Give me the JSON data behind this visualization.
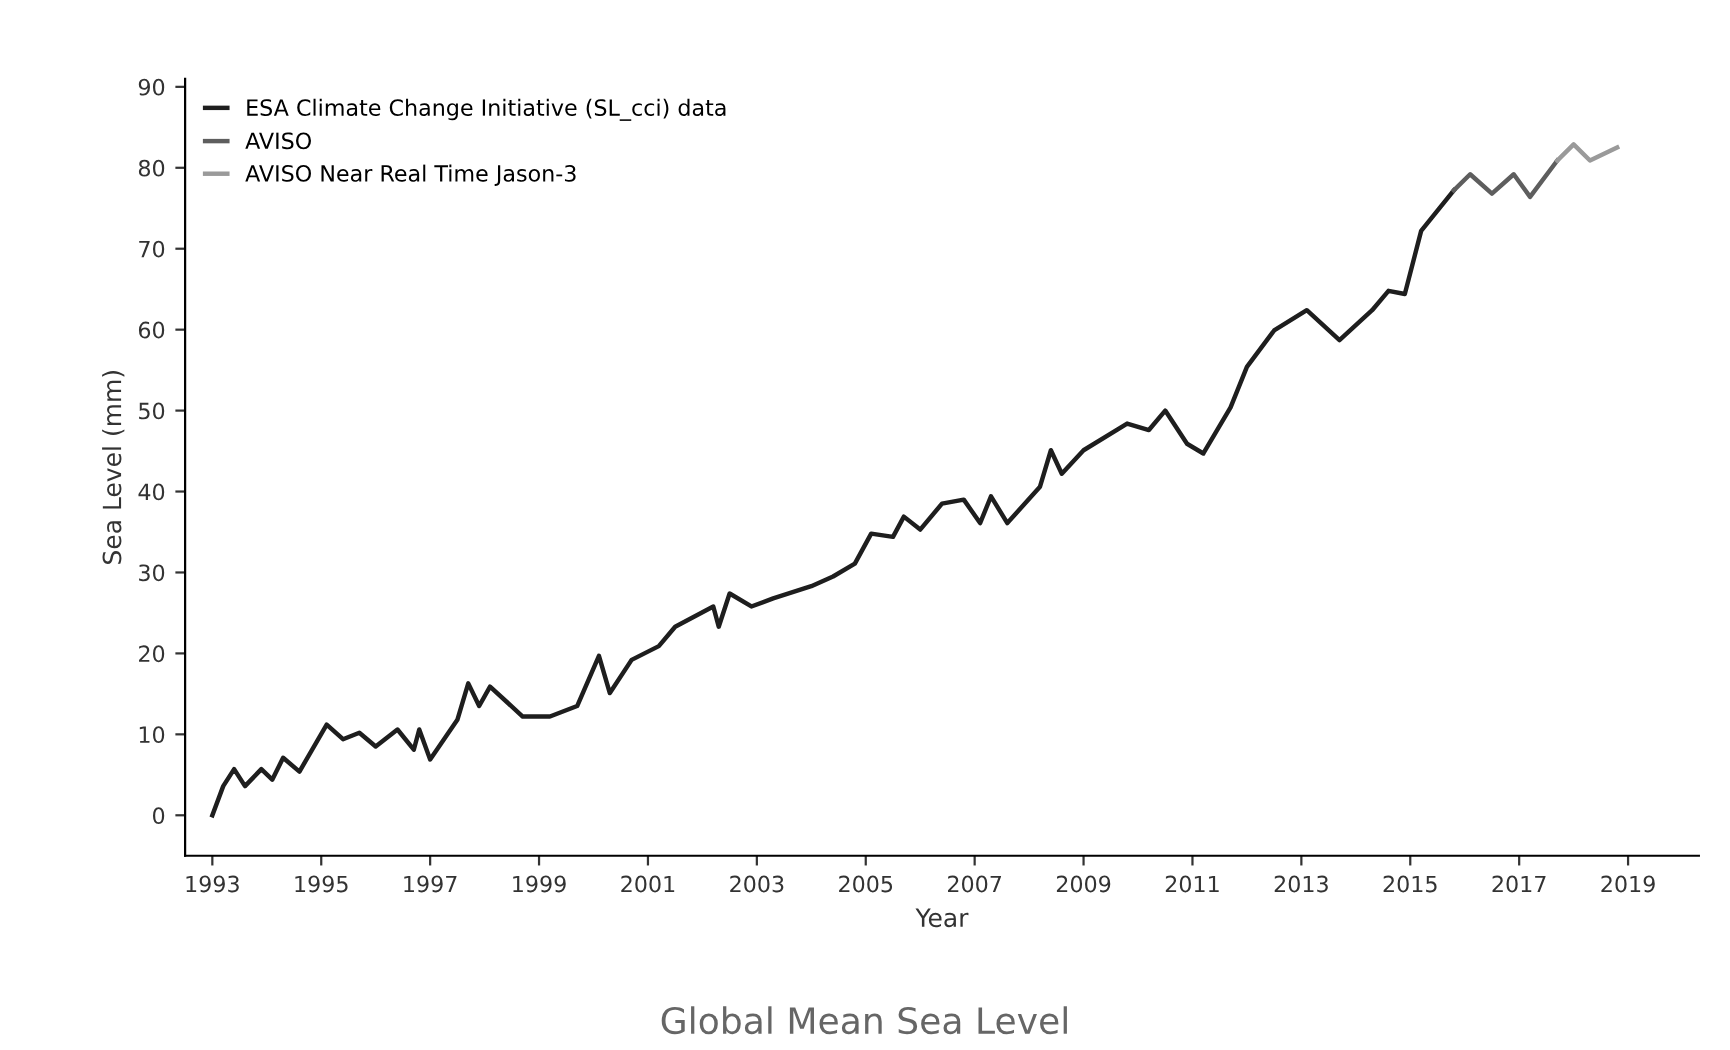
{
  "chart_data": {
    "type": "line",
    "xlabel": "Year",
    "ylabel": "Sea Level (mm)",
    "annotations": [
      "Global Mean Sea Level"
    ],
    "xlim": [
      1992.5,
      2020.3
    ],
    "xticks": [
      1993,
      1995,
      1997,
      1999,
      2001,
      2003,
      2005,
      2007,
      2009,
      2011,
      2013,
      2015,
      2017,
      2019
    ],
    "ylim": [
      -5,
      91
    ],
    "yticks": [
      0,
      10,
      20,
      30,
      40,
      50,
      60,
      70,
      80,
      90
    ],
    "grid": false,
    "legend": "top left",
    "marker": "none",
    "line_style": "solid",
    "series": [
      {
        "name": "ESA Climate Change Initiative (SL_cci) data",
        "color": "#1e1e1e",
        "x": [
          1993.0,
          1993.2,
          1993.4,
          1993.6,
          1993.9,
          1994.1,
          1994.3,
          1994.6,
          1995.1,
          1995.4,
          1995.7,
          1996.0,
          1996.4,
          1996.7,
          1996.8,
          1997.0,
          1997.5,
          1997.7,
          1997.9,
          1998.1,
          1998.7,
          1999.2,
          1999.7,
          2000.1,
          2000.3,
          2000.7,
          2001.2,
          2001.5,
          2002.2,
          2002.3,
          2002.5,
          2002.9,
          2003.3,
          2004.0,
          2004.4,
          2004.8,
          2005.1,
          2005.5,
          2005.7,
          2006.0,
          2006.4,
          2006.8,
          2007.1,
          2007.3,
          2007.6,
          2008.2,
          2008.4,
          2008.6,
          2009.0,
          2009.8,
          2010.2,
          2010.5,
          2010.9,
          2011.2,
          2011.7,
          2012.0,
          2012.5,
          2013.1,
          2013.7,
          2014.3,
          2014.6,
          2014.9,
          2015.2,
          2015.8
        ],
        "values": [
          0,
          3.6,
          5.7,
          3.6,
          5.7,
          4.4,
          7.1,
          5.4,
          11.2,
          9.4,
          10.2,
          8.5,
          10.6,
          8.1,
          10.6,
          6.9,
          11.8,
          16.3,
          13.5,
          15.9,
          12.2,
          12.2,
          13.5,
          19.7,
          15.1,
          19.2,
          20.9,
          23.3,
          25.8,
          23.3,
          27.4,
          25.8,
          26.8,
          28.3,
          29.5,
          31.1,
          34.8,
          34.4,
          36.9,
          35.3,
          38.5,
          39,
          36.1,
          39.4,
          36.1,
          40.6,
          45.1,
          42.2,
          45.1,
          48.4,
          47.6,
          50,
          45.9,
          44.7,
          50.4,
          55.4,
          59.9,
          62.4,
          58.7,
          62.4,
          64.8,
          64.4,
          72.2,
          77.2
        ]
      },
      {
        "name": "AVISO",
        "color": "#5e5e5e",
        "x": [
          2015.8,
          2016.1,
          2016.5,
          2016.9,
          2017.2,
          2017.7
        ],
        "values": [
          77.2,
          79.2,
          76.8,
          79.2,
          76.4,
          80.9
        ]
      },
      {
        "name": "AVISO Near Real Time Jason-3",
        "color": "#9a9a9a",
        "x": [
          2017.7,
          2018.0,
          2018.3,
          2018.8
        ],
        "values": [
          80.9,
          82.9,
          80.9,
          82.5
        ]
      }
    ]
  }
}
